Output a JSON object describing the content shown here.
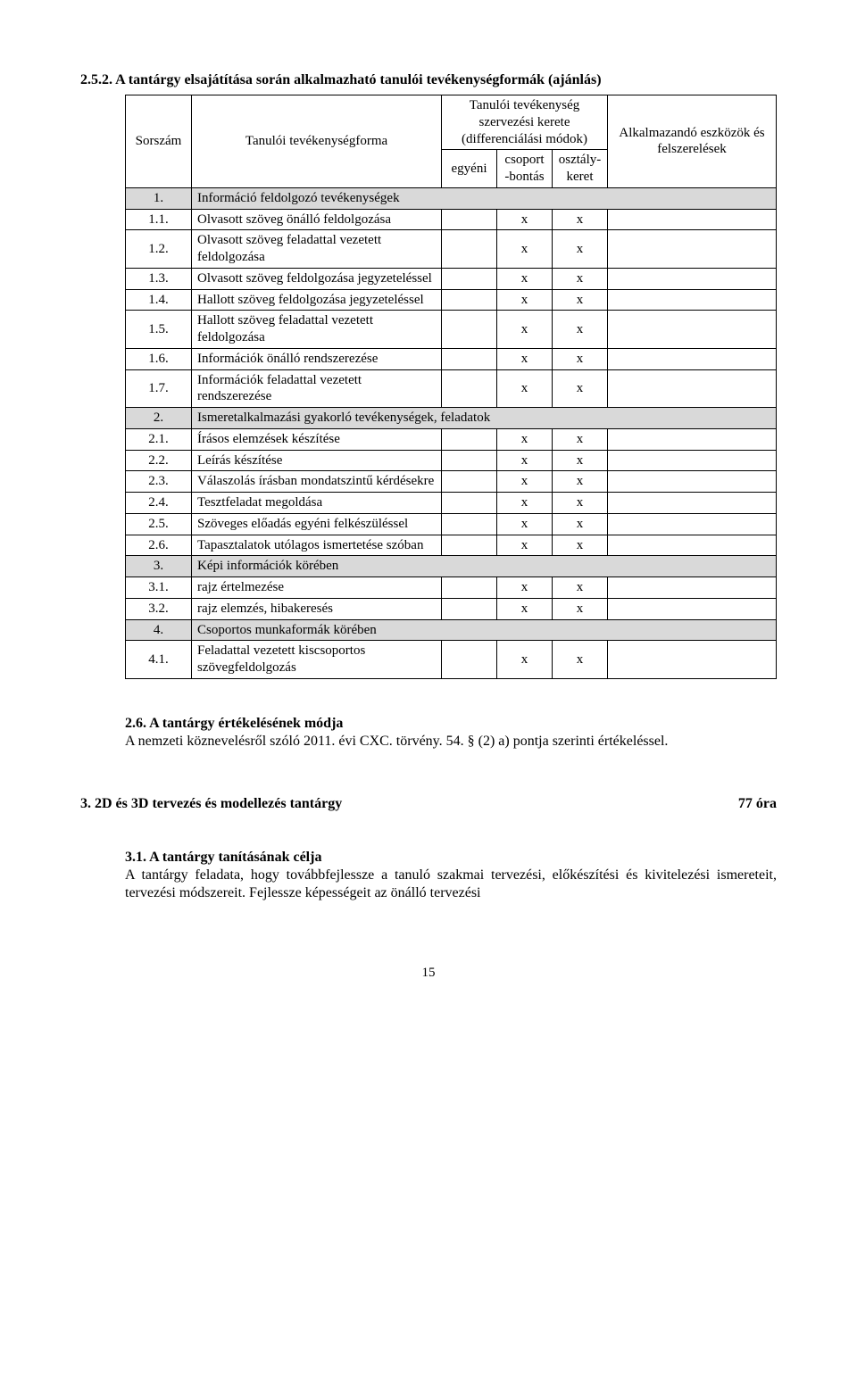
{
  "heading": "2.5.2. A tantárgy elsajátítása során alkalmazható tanulói tevékenységformák (ajánlás)",
  "table": {
    "header": {
      "sorszam": "Sorszám",
      "forma": "Tanulói tevékenységforma",
      "group": "Tanulói tevékenység szervezési kerete (differenciálási módok)",
      "egyeni": "egyéni",
      "csoport": "csoport-bontás",
      "osztaly": "osztály-keret",
      "eszkozok": "Alkalmazandó eszközök és felszerelések"
    },
    "rows": [
      {
        "type": "group",
        "num": "1.",
        "label": "Információ feldolgozó tevékenységek"
      },
      {
        "type": "item",
        "num": "1.1.",
        "label": "Olvasott szöveg önálló feldolgozása",
        "c1": "",
        "c2": "x",
        "c3": "x",
        "tools": ""
      },
      {
        "type": "item",
        "num": "1.2.",
        "label": "Olvasott szöveg feladattal vezetett feldolgozása",
        "c1": "",
        "c2": "x",
        "c3": "x",
        "tools": ""
      },
      {
        "type": "item",
        "num": "1.3.",
        "label": "Olvasott szöveg feldolgozása jegyzeteléssel",
        "c1": "",
        "c2": "x",
        "c3": "x",
        "tools": ""
      },
      {
        "type": "item",
        "num": "1.4.",
        "label": "Hallott szöveg feldolgozása jegyzeteléssel",
        "c1": "",
        "c2": "x",
        "c3": "x",
        "tools": ""
      },
      {
        "type": "item",
        "num": "1.5.",
        "label": "Hallott szöveg feladattal vezetett feldolgozása",
        "c1": "",
        "c2": "x",
        "c3": "x",
        "tools": ""
      },
      {
        "type": "item",
        "num": "1.6.",
        "label": "Információk önálló rendszerezése",
        "c1": "",
        "c2": "x",
        "c3": "x",
        "tools": ""
      },
      {
        "type": "item",
        "num": "1.7.",
        "label": "Információk feladattal vezetett rendszerezése",
        "c1": "",
        "c2": "x",
        "c3": "x",
        "tools": ""
      },
      {
        "type": "group",
        "num": "2.",
        "label": "Ismeretalkalmazási gyakorló tevékenységek, feladatok"
      },
      {
        "type": "item",
        "num": "2.1.",
        "label": "Írásos elemzések készítése",
        "c1": "",
        "c2": "x",
        "c3": "x",
        "tools": ""
      },
      {
        "type": "item",
        "num": "2.2.",
        "label": "Leírás készítése",
        "c1": "",
        "c2": "x",
        "c3": "x",
        "tools": ""
      },
      {
        "type": "item",
        "num": "2.3.",
        "label": "Válaszolás írásban mondatszintű kérdésekre",
        "c1": "",
        "c2": "x",
        "c3": "x",
        "tools": ""
      },
      {
        "type": "item",
        "num": "2.4.",
        "label": "Tesztfeladat megoldása",
        "c1": "",
        "c2": "x",
        "c3": "x",
        "tools": ""
      },
      {
        "type": "item",
        "num": "2.5.",
        "label": "Szöveges előadás egyéni felkészüléssel",
        "c1": "",
        "c2": "x",
        "c3": "x",
        "tools": ""
      },
      {
        "type": "item",
        "num": "2.6.",
        "label": "Tapasztalatok utólagos ismertetése szóban",
        "c1": "",
        "c2": "x",
        "c3": "x",
        "tools": ""
      },
      {
        "type": "group",
        "num": "3.",
        "label": "Képi információk körében"
      },
      {
        "type": "item",
        "num": "3.1.",
        "label": "rajz értelmezése",
        "c1": "",
        "c2": "x",
        "c3": "x",
        "tools": ""
      },
      {
        "type": "item",
        "num": "3.2.",
        "label": "rajz elemzés, hibakeresés",
        "c1": "",
        "c2": "x",
        "c3": "x",
        "tools": ""
      },
      {
        "type": "group",
        "num": "4.",
        "label": "Csoportos munkaformák körében"
      },
      {
        "type": "item",
        "num": "4.1.",
        "label": "Feladattal vezetett kiscsoportos szövegfeldolgozás",
        "c1": "",
        "c2": "x",
        "c3": "x",
        "tools": ""
      }
    ]
  },
  "section26": {
    "title": "2.6. A tantárgy értékelésének módja",
    "body": "A nemzeti köznevelésről szóló 2011. évi CXC. törvény. 54. § (2) a) pontja szerinti értékeléssel."
  },
  "section3": {
    "left": "3.  2D és 3D tervezés és modellezés tantárgy",
    "right": "77 óra"
  },
  "section31": {
    "title": "3.1. A tantárgy tanításának célja",
    "body": "A tantárgy feladata, hogy továbbfejlessze a tanuló szakmai tervezési, előkészítési és kivitelezési ismereteit, tervezési módszereit. Fejlessze képességeit az önálló tervezési"
  },
  "pageNumber": "15"
}
